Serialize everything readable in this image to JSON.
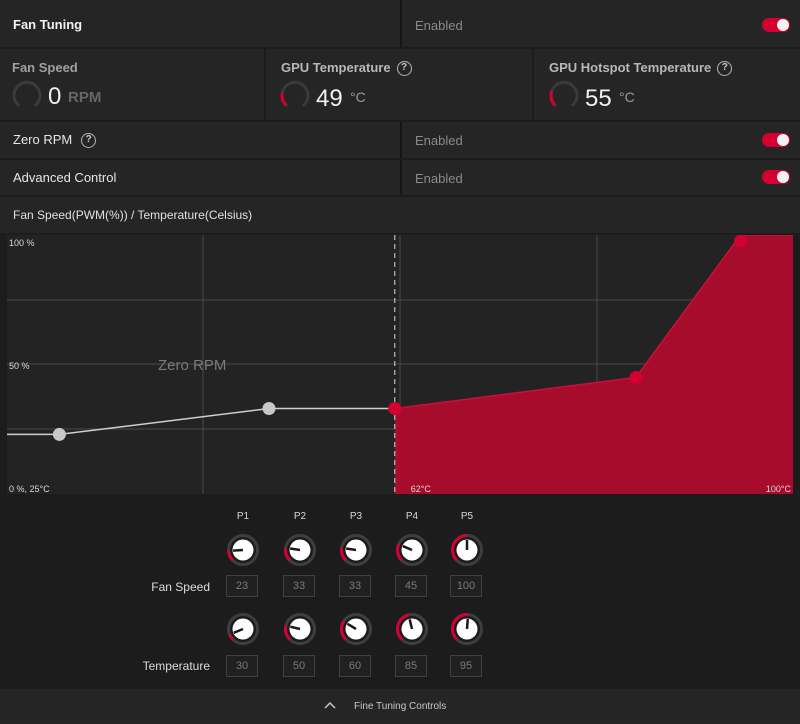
{
  "header": {
    "title": "Fan Tuning",
    "status": "Enabled"
  },
  "metrics": {
    "fan_speed": {
      "title": "Fan Speed",
      "value": "0",
      "unit": "RPM",
      "level": 0
    },
    "gpu_temp": {
      "title": "GPU Temperature",
      "help": "?",
      "value": "49",
      "unit": "°C",
      "level": 0.49
    },
    "hotspot_temp": {
      "title": "GPU Hotspot Temperature",
      "help": "?",
      "value": "55",
      "unit": "°C",
      "level": 0.55
    }
  },
  "zero_rpm": {
    "label": "Zero RPM",
    "help": "?",
    "status": "Enabled"
  },
  "advanced": {
    "label": "Advanced Control",
    "status": "Enabled"
  },
  "chart_title": "Fan Speed(PWM(%)) / Temperature(Celsius)",
  "chart_data": {
    "type": "area",
    "ylabel_top": "100 %",
    "ylabel_mid": "50 %",
    "origin_label": "0 %, 25°C",
    "xlabel_mid": "62°C",
    "xlabel_max": "100°C",
    "zone_label": "Zero RPM",
    "x_range": [
      25,
      100
    ],
    "y_range": [
      0,
      100
    ],
    "zero_rpm_threshold": 62,
    "points": [
      {
        "name": "P1",
        "temperature": 30,
        "fan_speed": 23
      },
      {
        "name": "P2",
        "temperature": 50,
        "fan_speed": 33
      },
      {
        "name": "P3",
        "temperature": 60,
        "fan_speed": 33
      },
      {
        "name": "P4",
        "temperature": 85,
        "fan_speed": 45
      },
      {
        "name": "P5",
        "temperature": 95,
        "fan_speed": 100
      }
    ]
  },
  "controls": {
    "points": [
      "P1",
      "P2",
      "P3",
      "P4",
      "P5"
    ],
    "fan_speed_label": "Fan Speed",
    "temperature_label": "Temperature",
    "fan_speed_values": [
      "23",
      "33",
      "33",
      "45",
      "100"
    ],
    "temperature_values": [
      "30",
      "50",
      "60",
      "85",
      "95"
    ]
  },
  "footer": {
    "label": "Fine Tuning Controls"
  },
  "colors": {
    "accent": "#d40030",
    "fill": "#a80c2c",
    "bg": "#252525"
  }
}
